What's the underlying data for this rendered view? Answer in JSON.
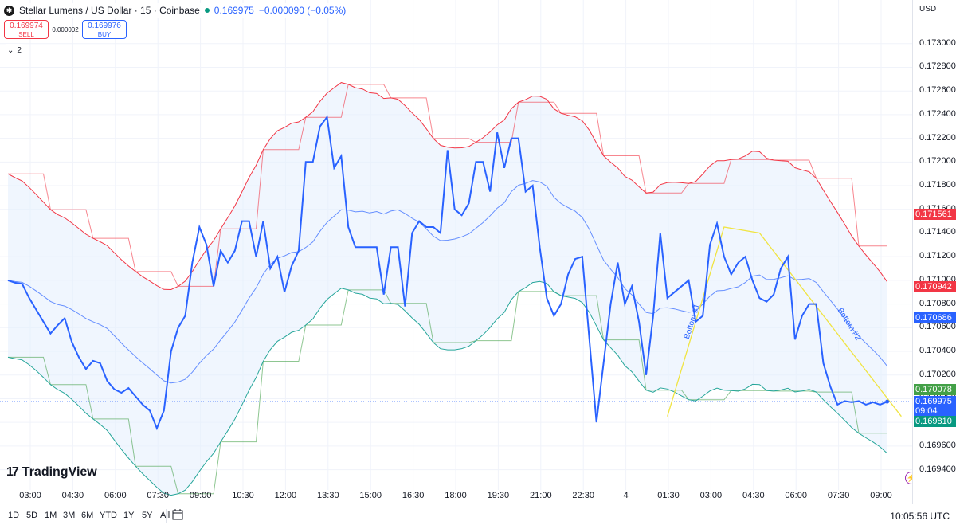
{
  "header": {
    "symbol": "Stellar Lumens / US Dollar · 15 · Coinbase",
    "price": "0.169975",
    "change": "−0.000090 (−0.05%)",
    "logo_icon": "stellar-logo-icon"
  },
  "trade": {
    "sell_price": "0.169974",
    "sell_label": "SELL",
    "spread": "0.000002",
    "buy_price": "0.169976",
    "buy_label": "BUY"
  },
  "collapse": {
    "label": "2",
    "icon": "chevron-down-icon"
  },
  "brand": {
    "name": "TradingView"
  },
  "currency_button": "USD",
  "clock": "10:05:56 UTC",
  "ranges": [
    "1D",
    "5D",
    "1M",
    "3M",
    "6M",
    "YTD",
    "1Y",
    "5Y",
    "All"
  ],
  "colors": {
    "price_line": "#2962ff",
    "upper_band": "#f23645",
    "lower_band": "#26a69a",
    "basis": "#2962ff",
    "trend": "#f0e442",
    "green": "#43a047",
    "teal": "#089981"
  },
  "chart_data": {
    "type": "line",
    "ylim": [
      0.16935,
      0.17316
    ],
    "price_ticks": [
      "0.173000",
      "0.172800",
      "0.172600",
      "0.172400",
      "0.172200",
      "0.172000",
      "0.171800",
      "0.171600",
      "0.171400",
      "0.171200",
      "0.171000",
      "0.170800",
      "0.170600",
      "0.170400",
      "0.170200",
      "0.170000",
      "0.169800",
      "0.169600",
      "0.169400"
    ],
    "price_tick_values": [
      0.173,
      0.1728,
      0.1726,
      0.1724,
      0.1722,
      0.172,
      0.1718,
      0.1716,
      0.1714,
      0.1712,
      0.171,
      0.1708,
      0.1706,
      0.1704,
      0.1702,
      0.17,
      0.1698,
      0.1696,
      0.1694
    ],
    "time_labels": [
      "03:00",
      "04:30",
      "06:00",
      "07:30",
      "09:00",
      "10:30",
      "12:00",
      "13:30",
      "15:00",
      "16:30",
      "18:00",
      "19:30",
      "21:00",
      "22:30",
      "4",
      "01:30",
      "03:00",
      "04:30",
      "06:00",
      "07:30",
      "09:00"
    ],
    "time_label_index": [
      0,
      6,
      12,
      18,
      24,
      30,
      36,
      42,
      48,
      54,
      60,
      66,
      72,
      78,
      84,
      90,
      96,
      102,
      108,
      114,
      120
    ],
    "badges": [
      {
        "label": "0.171561",
        "value": 0.171561,
        "color": "#f23645"
      },
      {
        "label": "0.170942",
        "value": 0.170942,
        "color": "#f23645"
      },
      {
        "label": "0.170686",
        "value": 0.170686,
        "color": "#2962ff"
      },
      {
        "label": "0.170078",
        "value": 0.170078,
        "color": "#43a047"
      },
      {
        "label": "0.169975",
        "sub": "09:04",
        "value": 0.169975,
        "color": "#2962ff"
      },
      {
        "label": "0.169810",
        "value": 0.16981,
        "color": "#089981"
      }
    ],
    "annotations": [
      "Bottom #1",
      "Bottom #2"
    ],
    "series": [
      {
        "values": [
          0.171,
          0.17098,
          0.17097,
          0.17085,
          0.17075,
          0.17065,
          0.17055,
          0.17062,
          0.17068,
          0.17048,
          0.17035,
          0.17025,
          0.17032,
          0.1703,
          0.17015,
          0.17008,
          0.17005,
          0.17009,
          0.17002,
          0.16995,
          0.1699,
          0.16975,
          0.1699,
          0.1704,
          0.1706,
          0.1707,
          0.17115,
          0.17145,
          0.1713,
          0.17095,
          0.17125,
          0.17115,
          0.17125,
          0.1715,
          0.1715,
          0.1712,
          0.1715,
          0.1711,
          0.1712,
          0.1709,
          0.17112,
          0.17125,
          0.172,
          0.172,
          0.1723,
          0.17238,
          0.17195,
          0.17205,
          0.17145,
          0.17128,
          0.17128,
          0.17128,
          0.17128,
          0.17088,
          0.17128,
          0.17128,
          0.17078,
          0.1714,
          0.1715,
          0.17145,
          0.17145,
          0.1714,
          0.1721,
          0.1716,
          0.17155,
          0.17165,
          0.172,
          0.172,
          0.17175,
          0.17225,
          0.17195,
          0.1722,
          0.1722,
          0.17175,
          0.1718,
          0.17128,
          0.17085,
          0.1707,
          0.1708,
          0.17105,
          0.17118,
          0.1712,
          0.1705,
          0.1698,
          0.1703,
          0.1708,
          0.17115,
          0.1708,
          0.17095,
          0.17065,
          0.1702,
          0.1707,
          0.1714,
          0.17085,
          0.1709,
          0.17095,
          0.171,
          0.17065,
          0.1707,
          0.1713,
          0.17148,
          0.1712,
          0.17105,
          0.17115,
          0.1712,
          0.171,
          0.17085,
          0.17082,
          0.17088,
          0.1711,
          0.1712,
          0.1705,
          0.1707,
          0.1708,
          0.1708,
          0.1703,
          0.1701,
          0.16995,
          0.16998,
          0.16997,
          0.16998,
          0.16995,
          0.16997,
          0.16995,
          0.169975
        ]
      }
    ]
  }
}
